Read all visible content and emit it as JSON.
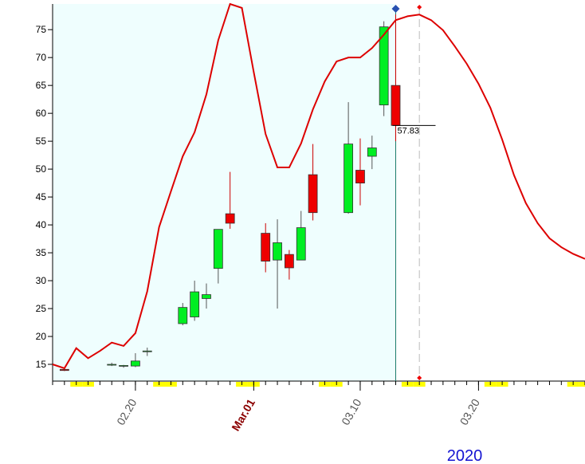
{
  "chart_data": {
    "type": "candlestick",
    "x": [
      "02.14",
      "02.18",
      "02.19",
      "02.20",
      "02.21",
      "02.24",
      "02.25",
      "02.26",
      "02.27",
      "02.28",
      "03.02",
      "03.03",
      "03.04",
      "03.05",
      "03.06",
      "03.09",
      "03.10",
      "03.11",
      "03.12",
      "03.13"
    ],
    "open": [
      14.1,
      15,
      14.7,
      14.7,
      17.3,
      22.3,
      23.5,
      26.8,
      32.2,
      42,
      38.5,
      33.7,
      34.7,
      33.7,
      49,
      42.2,
      49.8,
      52.3,
      61.5,
      65
    ],
    "high": [
      14.3,
      15.3,
      14.9,
      17,
      18,
      26,
      30,
      29.5,
      39.2,
      49.5,
      40.3,
      41,
      35.5,
      42.5,
      54.5,
      62,
      55.5,
      56,
      76.5,
      77.7
    ],
    "low": [
      13.8,
      14.7,
      14.4,
      14.5,
      16.5,
      22,
      22.8,
      25,
      29.5,
      39.3,
      31.5,
      25,
      30.2,
      33.7,
      40.8,
      42,
      43.5,
      50,
      59.5,
      55
    ],
    "close": [
      13.9,
      15,
      14.8,
      15.6,
      17.4,
      25.2,
      28,
      27.5,
      39.2,
      40.3,
      33.5,
      36.8,
      32.3,
      39.5,
      42.2,
      54.5,
      47.5,
      53.8,
      75.5,
      57.83
    ],
    "up_color": "#00ee22",
    "down_color": "#ee0000",
    "overlay": {
      "type": "line",
      "color": "#dd0000",
      "x": [
        "02.13",
        "02.14",
        "02.15",
        "02.16",
        "02.17",
        "02.18",
        "02.19",
        "02.20",
        "02.21",
        "02.22",
        "02.23",
        "02.24",
        "02.25",
        "02.26",
        "02.27",
        "02.28",
        "02.29",
        "03.01",
        "03.02",
        "03.03",
        "03.04",
        "03.05",
        "03.06",
        "03.07",
        "03.08",
        "03.09",
        "03.10",
        "03.11",
        "03.12",
        "03.13",
        "03.14",
        "03.15",
        "03.16",
        "03.17",
        "03.18",
        "03.19",
        "03.20",
        "03.21",
        "03.22",
        "03.23",
        "03.24",
        "03.25",
        "03.26",
        "03.27",
        "03.28",
        "03.29"
      ],
      "values": [
        15,
        14.3,
        17.9,
        16.1,
        17.4,
        18.9,
        18.3,
        20.6,
        28.1,
        39.6,
        46,
        52.3,
        56.6,
        63.4,
        73.1,
        79.6,
        78.9,
        67.4,
        56.3,
        50.3,
        50.3,
        54.6,
        60.7,
        65.7,
        69.3,
        70,
        70,
        71.7,
        74.1,
        76.7,
        77.4,
        77.7,
        76.7,
        74.9,
        72,
        68.9,
        65.3,
        61,
        55.3,
        48.9,
        43.9,
        40.3,
        37.6,
        36,
        34.8,
        33.9
      ]
    },
    "ylim": [
      12,
      79.6
    ],
    "yticks": [
      15,
      20,
      25,
      30,
      35,
      40,
      45,
      50,
      55,
      60,
      65,
      70,
      75
    ],
    "xlim": [
      "02.13",
      "03.29"
    ],
    "xticks": [
      "02.20",
      {
        "value": "03.01",
        "label": "Mar.01"
      },
      "03.10",
      "03.20"
    ],
    "year": "2020"
  }
}
